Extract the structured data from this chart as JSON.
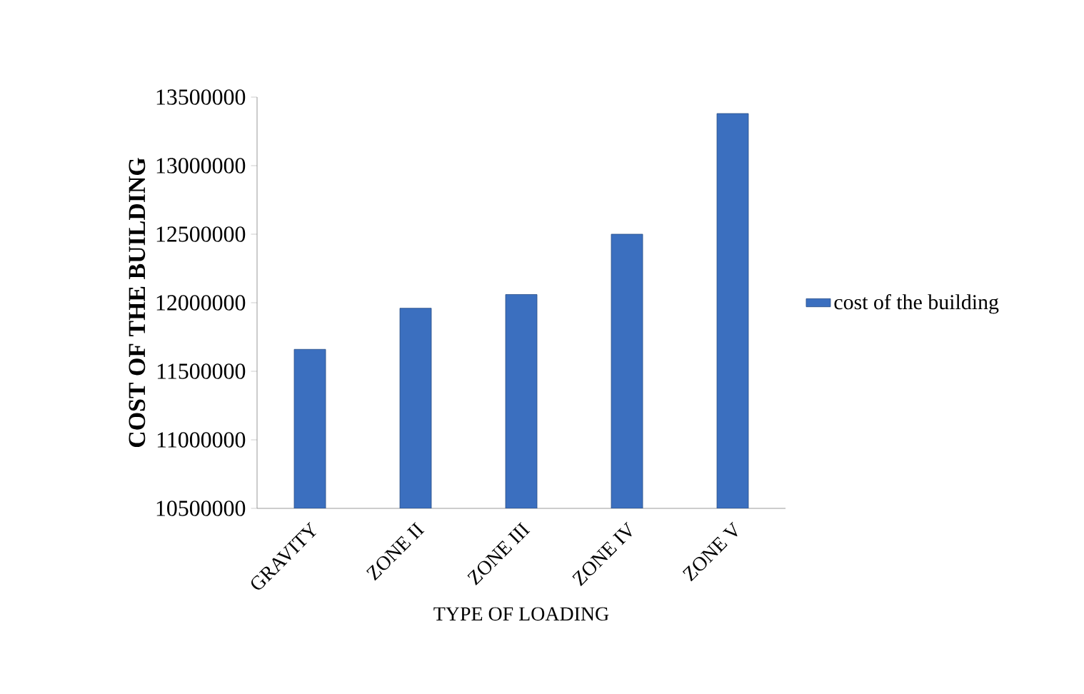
{
  "chart_data": {
    "type": "bar",
    "xlabel": "TYPE OF LOADING",
    "ylabel": "COST OF THE BUILDING",
    "categories": [
      "GRAVITY",
      "ZONE II",
      "ZONE III",
      "ZONE IV",
      "ZONE V"
    ],
    "series": [
      {
        "name": "cost of the building",
        "color": "#3b6fbf",
        "values": [
          11660000,
          11960000,
          12060000,
          12500000,
          13380000
        ]
      }
    ],
    "ylim": [
      10500000,
      13500000
    ],
    "yticks": [
      10500000,
      11000000,
      11500000,
      12000000,
      12500000,
      13000000,
      13500000
    ],
    "grid": false,
    "legend": "right"
  }
}
